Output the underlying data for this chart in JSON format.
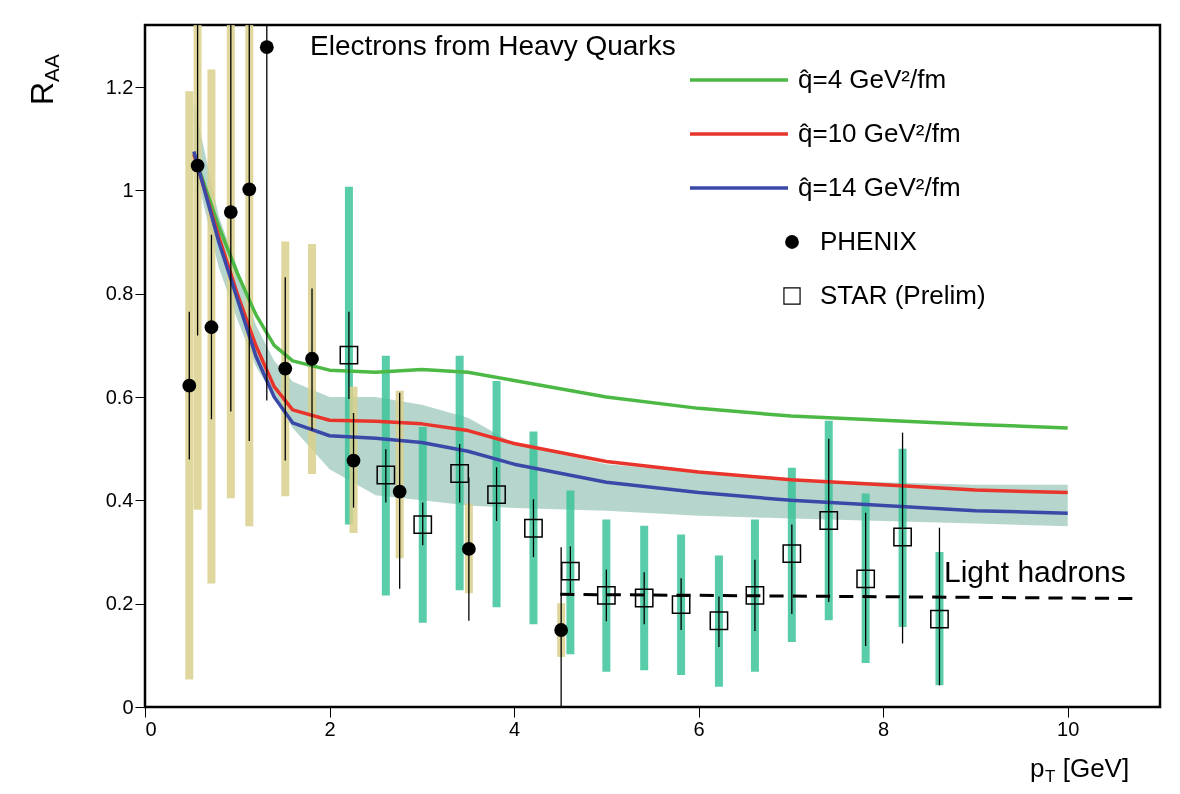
{
  "chart_data": {
    "type": "scatter",
    "title": "Electrons from Heavy Quarks",
    "xlabel": "p$_{T}$ [GeV]",
    "ylabel": "R$_{AA}$",
    "xlim": [
      0,
      11
    ],
    "ylim": [
      0,
      1.32
    ],
    "xticks": [
      0,
      2,
      4,
      6,
      8,
      10
    ],
    "yticks": [
      0,
      0.2,
      0.4,
      0.6,
      0.8,
      1,
      1.2
    ],
    "grid": false,
    "legend": "top right",
    "annotations": [
      "Light hadrons"
    ],
    "series": [
      {
        "name": "q̂=4 GeV²/fm",
        "type": "line",
        "color": "#4cb944",
        "x": [
          0.53,
          0.8,
          1.0,
          1.2,
          1.4,
          1.6,
          2.0,
          2.5,
          3.0,
          3.5,
          4.0,
          5.0,
          6.0,
          7.0,
          8.0,
          9.0,
          10.0
        ],
        "values": [
          1.07,
          0.93,
          0.84,
          0.76,
          0.7,
          0.67,
          0.652,
          0.648,
          0.653,
          0.648,
          0.632,
          0.6,
          0.578,
          0.563,
          0.555,
          0.547,
          0.54
        ]
      },
      {
        "name": "q̂=10 GeV²/fm",
        "type": "line",
        "color": "#e8342a",
        "x": [
          0.53,
          0.8,
          1.0,
          1.2,
          1.4,
          1.6,
          2.0,
          2.5,
          3.0,
          3.5,
          4.0,
          5.0,
          6.0,
          7.0,
          8.0,
          9.0,
          10.0
        ],
        "values": [
          1.07,
          0.91,
          0.8,
          0.7,
          0.62,
          0.575,
          0.555,
          0.553,
          0.548,
          0.535,
          0.51,
          0.475,
          0.455,
          0.44,
          0.43,
          0.42,
          0.415
        ]
      },
      {
        "name": "q̂=14 GeV²/fm",
        "type": "line",
        "color": "#3a49a8",
        "x": [
          0.53,
          0.8,
          1.0,
          1.2,
          1.4,
          1.6,
          2.0,
          2.5,
          3.0,
          3.5,
          4.0,
          5.0,
          6.0,
          7.0,
          8.0,
          9.0,
          10.0
        ],
        "values": [
          1.075,
          0.9,
          0.79,
          0.68,
          0.6,
          0.55,
          0.525,
          0.52,
          0.512,
          0.495,
          0.47,
          0.435,
          0.415,
          0.4,
          0.39,
          0.38,
          0.375
        ],
        "lower": [
          1.05,
          0.85,
          0.75,
          0.66,
          0.6,
          0.54,
          0.46,
          0.41,
          0.4,
          0.39,
          0.385,
          0.38,
          0.37,
          0.365,
          0.36,
          0.355,
          0.35
        ],
        "upper": [
          1.17,
          0.95,
          0.85,
          0.74,
          0.67,
          0.63,
          0.6,
          0.6,
          0.585,
          0.56,
          0.51,
          0.47,
          0.455,
          0.44,
          0.435,
          0.43,
          0.43
        ]
      },
      {
        "type": "bar",
        "color": "#d9d08c",
        "x": [
          0.48,
          0.57,
          0.72,
          0.93,
          1.13,
          1.32,
          1.52,
          1.81,
          2.26,
          2.76,
          3.51,
          4.51
        ],
        "base": [
          0.053,
          0.382,
          0.239,
          0.404,
          0.35,
          null,
          0.408,
          0.451,
          0.337,
          0.288,
          0.22,
          0.097
        ],
        "values": [
          1.139,
          0.938,
          0.995,
          0.916,
          0.97,
          null,
          0.493,
          0.445,
          0.283,
          0.324,
          0.174,
          0.104
        ]
      },
      {
        "type": "bar",
        "color": "#3cc39a",
        "x": [
          2.21,
          2.61,
          3.01,
          3.41,
          3.81,
          4.21,
          4.61,
          5.0,
          5.41,
          5.81,
          6.22,
          6.61,
          7.01,
          7.41,
          7.81,
          8.21,
          8.61
        ],
        "base": [
          0.353,
          0.216,
          0.163,
          0.226,
          0.193,
          0.16,
          0.102,
          0.068,
          0.071,
          0.062,
          0.039,
          0.068,
          0.126,
          0.168,
          0.085,
          0.155,
          0.042
        ],
        "values": [
          0.654,
          0.464,
          0.379,
          0.454,
          0.438,
          0.373,
          0.317,
          0.295,
          0.28,
          0.272,
          0.254,
          0.295,
          0.337,
          0.386,
          0.328,
          0.345,
          0.258
        ]
      },
      {
        "name": "PHENIX",
        "marker": "circle",
        "color": "#000000",
        "x": [
          0.48,
          0.57,
          0.72,
          0.93,
          1.13,
          1.32,
          1.52,
          1.81,
          2.26,
          2.76,
          3.51,
          4.51
        ],
        "values": [
          0.622,
          1.048,
          0.735,
          0.958,
          1.002,
          1.277,
          0.655,
          0.674,
          0.477,
          0.417,
          0.306,
          0.149
        ],
        "errors": [
          [
            0.479,
            0.765
          ],
          [
            0.719,
            1.32
          ],
          [
            0.557,
            0.914
          ],
          [
            0.572,
            1.32
          ],
          [
            0.515,
            1.32
          ],
          [
            0.593,
            1.32
          ],
          [
            0.477,
            0.832
          ],
          [
            0.535,
            0.81
          ],
          [
            0.386,
            0.569
          ],
          [
            0.229,
            0.608
          ],
          [
            0.167,
            0.444
          ],
          [
            0,
            0.309
          ]
        ]
      },
      {
        "name": "STAR (Prelim)",
        "marker": "square",
        "color": "#000000",
        "x": [
          2.21,
          2.61,
          3.01,
          3.41,
          3.81,
          4.21,
          4.61,
          5.0,
          5.41,
          5.81,
          6.22,
          6.61,
          7.01,
          7.41,
          7.81,
          8.21,
          8.61
        ],
        "values": [
          0.681,
          0.449,
          0.353,
          0.452,
          0.411,
          0.346,
          0.263,
          0.216,
          0.211,
          0.198,
          0.167,
          0.216,
          0.297,
          0.361,
          0.248,
          0.329,
          0.17
        ],
        "errors": [
          [
            0.596,
            0.765
          ],
          [
            0.396,
            0.499
          ],
          [
            0.313,
            0.396
          ],
          [
            0.396,
            0.509
          ],
          [
            0.36,
            0.464
          ],
          [
            0.29,
            0.402
          ],
          [
            0.216,
            0.311
          ],
          [
            0.166,
            0.266
          ],
          [
            0.16,
            0.261
          ],
          [
            0.149,
            0.249
          ],
          [
            0.116,
            0.214
          ],
          [
            0.147,
            0.285
          ],
          [
            0.18,
            0.353
          ],
          [
            0.203,
            0.519
          ],
          [
            0.118,
            0.376
          ],
          [
            0.123,
            0.531
          ],
          [
            0.042,
            0.347
          ]
        ]
      },
      {
        "type": "line",
        "line_style": "dashed",
        "color": "#000000",
        "x": [
          4.5,
          10.7
        ],
        "values": [
          0.218,
          0.21
        ]
      }
    ]
  }
}
